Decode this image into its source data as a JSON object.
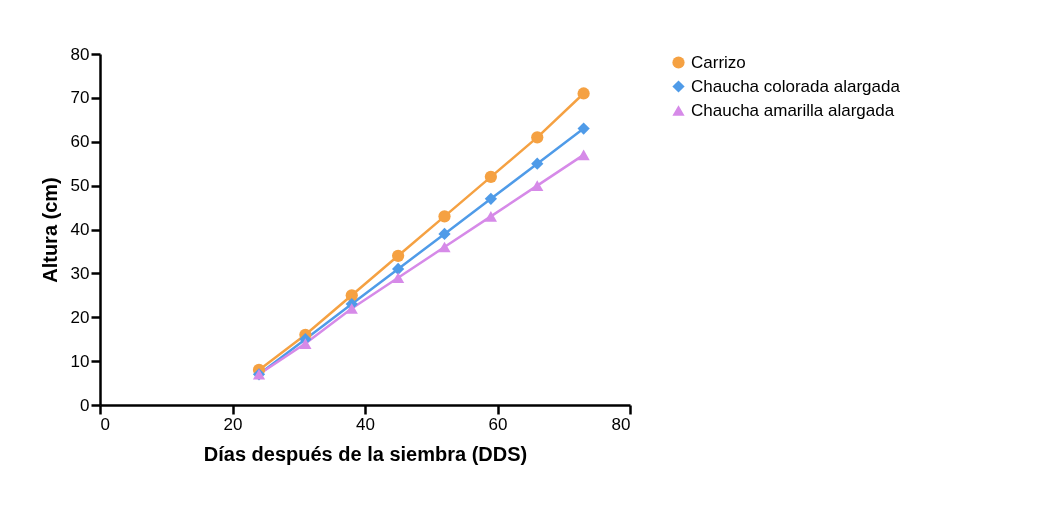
{
  "chart_data": {
    "type": "line",
    "xlabel": "Días después de la siembra (DDS)",
    "ylabel": "Altura (cm)",
    "x": [
      24,
      31,
      38,
      45,
      52,
      59,
      66,
      73
    ],
    "series": [
      {
        "name": "Carrizo",
        "color": "#f5a142",
        "marker": "circle",
        "values": [
          8,
          16,
          25,
          34,
          43,
          52,
          61,
          71
        ]
      },
      {
        "name": "Chaucha colorada alargada",
        "color": "#4f9be8",
        "marker": "diamond",
        "values": [
          7,
          15,
          23,
          31,
          39,
          47,
          55,
          63
        ]
      },
      {
        "name": "Chaucha amarilla alargada",
        "color": "#d68ae8",
        "marker": "triangle",
        "values": [
          7,
          14,
          22,
          29,
          36,
          43,
          50,
          57
        ]
      }
    ],
    "xlim": [
      0,
      80
    ],
    "xticks": [
      0,
      20,
      40,
      60,
      80
    ],
    "ylim": [
      0,
      80
    ],
    "yticks": [
      0,
      10,
      20,
      30,
      40,
      50,
      60,
      70,
      80
    ],
    "grid": false,
    "legend": "top right",
    "line_style": "solid"
  }
}
